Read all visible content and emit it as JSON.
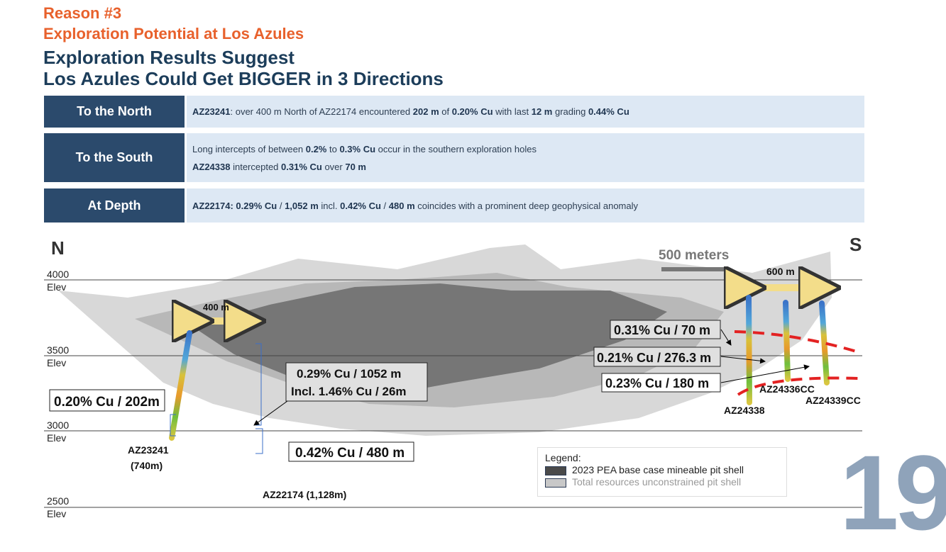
{
  "header": {
    "reason": "Reason #3",
    "subtitle": "Exploration Potential at Los Azules",
    "title_line1": "Exploration Results Suggest",
    "title_line2": "Los Azules Could Get BIGGER in 3 Directions"
  },
  "rows": [
    {
      "label": "To the North",
      "lines": [
        [
          {
            "b": "AZ23241"
          },
          {
            "t": ": over 400 m North of AZ22174 encountered "
          },
          {
            "b": "202 m"
          },
          {
            "t": " of "
          },
          {
            "b": "0.20% Cu"
          },
          {
            "t": " with last "
          },
          {
            "b": "12 m"
          },
          {
            "t": " grading "
          },
          {
            "b": "0.44% Cu"
          }
        ]
      ]
    },
    {
      "label": "To the South",
      "lines": [
        [
          {
            "t": "Long intercepts of between "
          },
          {
            "b": "0.2%"
          },
          {
            "t": " to "
          },
          {
            "b": "0.3% Cu"
          },
          {
            "t": " occur in the southern exploration holes"
          }
        ],
        [
          {
            "b": "AZ24338"
          },
          {
            "t": " intercepted "
          },
          {
            "b": "0.31% Cu"
          },
          {
            "t": " over "
          },
          {
            "b": "70 m"
          }
        ]
      ]
    },
    {
      "label": "At Depth",
      "lines": [
        [
          {
            "b": "AZ22174: 0.29% Cu"
          },
          {
            "t": " / "
          },
          {
            "b": "1,052 m"
          },
          {
            "t": " incl. "
          },
          {
            "b": "0.42% Cu"
          },
          {
            "t": " / "
          },
          {
            "b": "480 m"
          },
          {
            "t": " coincides with a prominent deep geophysical anomaly"
          }
        ]
      ]
    }
  ],
  "section": {
    "north": "N",
    "south": "S",
    "scale_label": "500 meters",
    "elevations": [
      {
        "value": "4000",
        "unit": "Elev"
      },
      {
        "value": "3500",
        "unit": "Elev"
      },
      {
        "value": "3000",
        "unit": "Elev"
      },
      {
        "value": "2500",
        "unit": "Elev"
      }
    ],
    "spacing_north": "400 m",
    "spacing_south": "600 m",
    "holes": {
      "az23241": "AZ23241",
      "az23241_len": "(740m)",
      "az22174": "AZ22174 (1,128m)",
      "az24338": "AZ24338",
      "az24336": "AZ24336CC",
      "az24339": "AZ24339CC"
    },
    "intercepts": {
      "i1": "0.20% Cu / 202m",
      "i2a": "0.29% Cu / 1052 m",
      "i2b": "Incl. 1.46% Cu / 26m",
      "i3": "0.42% Cu / 480 m",
      "i4": "0.31% Cu / 70 m",
      "i5": "0.21% Cu / 276.3 m",
      "i6": "0.23% Cu / 180 m"
    }
  },
  "legend": {
    "title": "Legend:",
    "items": [
      "2023 PEA base case mineable pit shell",
      "Total resources unconstrained pit shell"
    ],
    "colors": [
      "#4a4a4a",
      "#c8c8c8"
    ]
  },
  "page_number": "19",
  "colors": {
    "orange": "#e8612c",
    "navy": "#2b4a6c",
    "light": "#dde8f4"
  }
}
